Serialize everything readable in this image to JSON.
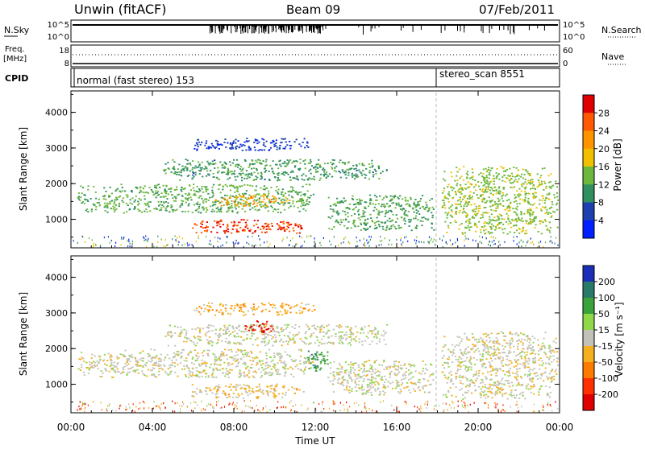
{
  "header": {
    "station": "Unwin (fitACF)",
    "beam": "Beam 09",
    "date": "07/Feb/2011"
  },
  "nsky_panel": {
    "label": "N.Sky",
    "right_label": "N.Search",
    "left_ticks": [
      "10^5",
      "10^0"
    ],
    "right_ticks": [
      "10^5",
      "10^0"
    ]
  },
  "freq_panel": {
    "label_line1": "Freq.",
    "label_line2": "[MHz]",
    "right_label": "Nave",
    "left_ticks": [
      "18",
      "8"
    ],
    "right_ticks": [
      "60",
      "0"
    ]
  },
  "cpid_panel": {
    "label": "CPID",
    "modes": [
      {
        "name": "normal (fast stereo) 153",
        "start_hour": 0
      },
      {
        "name": "stereo_scan 8551",
        "start_hour": 18
      }
    ]
  },
  "colorbars": {
    "power": {
      "label": "Power [dB]",
      "ticks": [
        "28",
        "24",
        "20",
        "16",
        "12",
        "8",
        "4"
      ],
      "colors": [
        "#e00000",
        "#ff5a00",
        "#ff9400",
        "#f0c000",
        "#6cb83c",
        "#2f8f5f",
        "#1d3fb0",
        "#0020ff"
      ]
    },
    "velocity": {
      "label": "Velocity [m s⁻¹]",
      "ticks": [
        "200",
        "100",
        "50",
        "15",
        "-15",
        "-50",
        "-100",
        "-200"
      ],
      "colors": [
        "#1a2eb8",
        "#2a7a6a",
        "#3aa23a",
        "#8ed84a",
        "#c2c2b8",
        "#f5b020",
        "#ff7a00",
        "#ff3000",
        "#e00000"
      ]
    }
  },
  "chart_data": [
    {
      "type": "heatmap",
      "title": "",
      "variable": "power",
      "xlabel": "Time UT",
      "ylabel": "Slant Range [km]",
      "xlim": [
        0,
        24
      ],
      "ylim": [
        200,
        4600
      ],
      "xticks": [
        "00:00",
        "04:00",
        "08:00",
        "12:00",
        "16:00",
        "20:00",
        "00:00"
      ],
      "yticks": [
        "1000",
        "2000",
        "3000",
        "4000"
      ],
      "scale": [
        0,
        30
      ],
      "regions": [
        {
          "t0": 5.9,
          "t1": 11.4,
          "r0": 620,
          "r1": 1020,
          "value": 26
        },
        {
          "t0": 0.3,
          "t1": 12.0,
          "r0": 1200,
          "r1": 2000,
          "value": 12
        },
        {
          "t0": 7.0,
          "t1": 10.8,
          "r0": 1380,
          "r1": 1700,
          "value": 20
        },
        {
          "t0": 4.5,
          "t1": 15.5,
          "r0": 2100,
          "r1": 2700,
          "value": 10
        },
        {
          "t0": 6.0,
          "t1": 12.0,
          "r0": 2950,
          "r1": 3300,
          "value": 5
        },
        {
          "t0": 12.6,
          "t1": 17.8,
          "r0": 700,
          "r1": 1700,
          "value": 11
        },
        {
          "t0": 18.2,
          "t1": 23.9,
          "r0": 600,
          "r1": 2500,
          "value": 14
        }
      ]
    },
    {
      "type": "heatmap",
      "title": "",
      "variable": "velocity",
      "xlabel": "Time UT",
      "ylabel": "Slant Range [km]",
      "xlim": [
        0,
        24
      ],
      "ylim": [
        200,
        4600
      ],
      "xticks": [
        "00:00",
        "04:00",
        "08:00",
        "12:00",
        "16:00",
        "20:00",
        "00:00"
      ],
      "yticks": [
        "1000",
        "2000",
        "3000",
        "4000"
      ],
      "scale": [
        -250,
        250
      ],
      "regions": [
        {
          "t0": 5.9,
          "t1": 11.4,
          "r0": 620,
          "r1": 1020,
          "value": -40
        },
        {
          "t0": 0.3,
          "t1": 12.0,
          "r0": 1200,
          "r1": 2000,
          "value": 0
        },
        {
          "t0": 4.5,
          "t1": 15.5,
          "r0": 2100,
          "r1": 2700,
          "value": 5
        },
        {
          "t0": 8.5,
          "t1": 10.0,
          "r0": 2450,
          "r1": 2800,
          "value": -210
        },
        {
          "t0": 11.5,
          "t1": 12.6,
          "r0": 1350,
          "r1": 2000,
          "value": 120
        },
        {
          "t0": 12.6,
          "t1": 17.8,
          "r0": 700,
          "r1": 1700,
          "value": 3
        },
        {
          "t0": 18.2,
          "t1": 23.9,
          "r0": 600,
          "r1": 2500,
          "value": -2
        },
        {
          "t0": 6.0,
          "t1": 12.0,
          "r0": 2950,
          "r1": 3300,
          "value": -60
        }
      ]
    }
  ]
}
